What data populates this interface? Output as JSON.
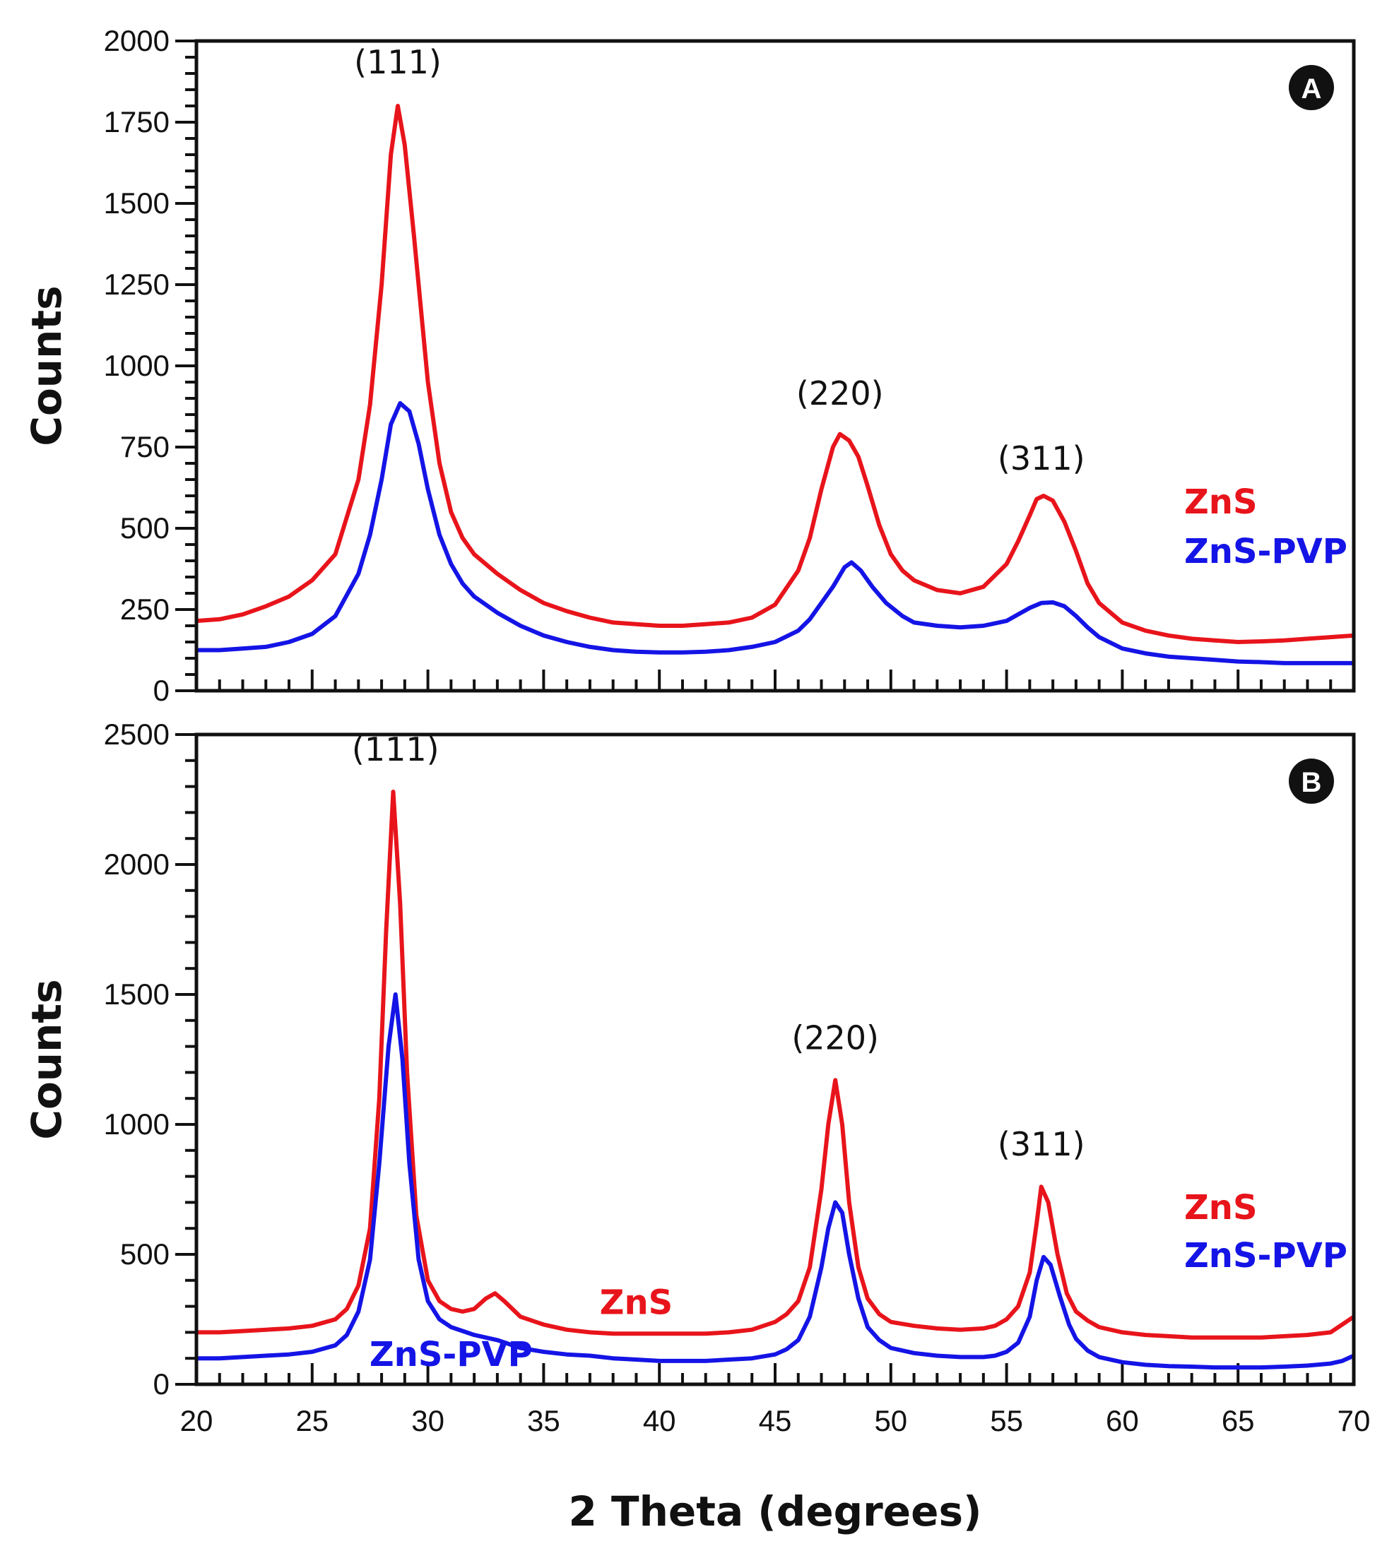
{
  "colors": {
    "zns": "#e8141b",
    "zns_pvp": "#1414e6",
    "axis": "#111111"
  },
  "chart_data": [
    {
      "type": "line",
      "panel_label": "A",
      "title": "",
      "xlabel": "2 Theta (degrees)",
      "ylabel": "Counts",
      "xlim": [
        20,
        70
      ],
      "ylim": [
        0,
        2000
      ],
      "y_ticks": [
        0,
        250,
        500,
        750,
        1000,
        1250,
        1500,
        1750,
        2000
      ],
      "x_ticks": [
        20,
        25,
        30,
        35,
        40,
        45,
        50,
        55,
        60,
        65,
        70
      ],
      "show_x_tick_labels": false,
      "grid": false,
      "legend": {
        "placement": "right",
        "entries": [
          "ZnS",
          "ZnS-PVP"
        ]
      },
      "annotations": [
        {
          "text": "(111)",
          "x": 28.7,
          "y": 1900
        },
        {
          "text": "(220)",
          "x": 47.8,
          "y": 880
        },
        {
          "text": "(311)",
          "x": 56.5,
          "y": 680
        }
      ],
      "series": [
        {
          "name": "ZnS",
          "x": [
            20,
            21,
            22,
            23,
            24,
            25,
            26,
            27,
            27.5,
            28,
            28.4,
            28.7,
            29,
            29.4,
            30,
            30.5,
            31,
            31.5,
            32,
            33,
            34,
            35,
            36,
            37,
            38,
            39,
            40,
            41,
            42,
            43,
            44,
            45,
            46,
            46.5,
            47,
            47.5,
            47.8,
            48.2,
            48.6,
            49,
            49.5,
            50,
            50.5,
            51,
            52,
            53,
            54,
            55,
            55.5,
            56,
            56.3,
            56.6,
            57,
            57.5,
            58,
            58.5,
            59,
            60,
            61,
            62,
            63,
            64,
            65,
            66,
            67,
            68,
            69,
            70
          ],
          "y": [
            215,
            220,
            235,
            260,
            290,
            340,
            420,
            650,
            880,
            1250,
            1650,
            1800,
            1680,
            1400,
            950,
            700,
            550,
            470,
            420,
            360,
            310,
            270,
            245,
            225,
            210,
            205,
            200,
            200,
            205,
            210,
            225,
            265,
            370,
            470,
            620,
            750,
            790,
            770,
            720,
            630,
            510,
            420,
            370,
            340,
            310,
            300,
            320,
            390,
            460,
            540,
            590,
            600,
            585,
            520,
            430,
            330,
            270,
            210,
            185,
            170,
            160,
            155,
            150,
            152,
            155,
            160,
            165,
            170
          ]
        },
        {
          "name": "ZnS-PVP",
          "x": [
            20,
            21,
            22,
            23,
            24,
            25,
            26,
            27,
            27.5,
            28,
            28.4,
            28.8,
            29.2,
            29.6,
            30,
            30.5,
            31,
            31.5,
            32,
            33,
            34,
            35,
            36,
            37,
            38,
            39,
            40,
            41,
            42,
            43,
            44,
            45,
            46,
            46.5,
            47,
            47.5,
            48,
            48.3,
            48.7,
            49.2,
            49.8,
            50.5,
            51,
            52,
            53,
            54,
            55,
            55.5,
            56,
            56.5,
            57,
            57.5,
            58,
            58.5,
            59,
            60,
            61,
            62,
            63,
            64,
            65,
            66,
            67,
            68,
            69,
            70
          ],
          "y": [
            125,
            125,
            130,
            135,
            150,
            175,
            230,
            360,
            480,
            650,
            820,
            885,
            860,
            760,
            620,
            480,
            390,
            330,
            290,
            240,
            200,
            170,
            150,
            135,
            125,
            120,
            118,
            118,
            120,
            125,
            135,
            150,
            185,
            220,
            270,
            320,
            380,
            395,
            370,
            320,
            270,
            230,
            210,
            200,
            195,
            200,
            215,
            235,
            255,
            270,
            272,
            260,
            230,
            195,
            165,
            130,
            115,
            105,
            100,
            95,
            90,
            88,
            85,
            85,
            85,
            85
          ]
        }
      ]
    },
    {
      "type": "line",
      "panel_label": "B",
      "title": "",
      "xlabel": "2 Theta (degrees)",
      "ylabel": "Counts",
      "xlim": [
        20,
        70
      ],
      "ylim": [
        0,
        2500
      ],
      "y_ticks": [
        0,
        500,
        1000,
        1500,
        2000,
        2500
      ],
      "x_ticks": [
        20,
        25,
        30,
        35,
        40,
        45,
        50,
        55,
        60,
        65,
        70
      ],
      "show_x_tick_labels": true,
      "grid": false,
      "legend": {
        "placement": "right",
        "entries": [
          "ZnS",
          "ZnS-PVP"
        ]
      },
      "annotations": [
        {
          "text": "(111)",
          "x": 28.6,
          "y": 2400
        },
        {
          "text": "(220)",
          "x": 47.6,
          "y": 1290
        },
        {
          "text": "(311)",
          "x": 56.5,
          "y": 880
        }
      ],
      "inline_labels": [
        {
          "text": "ZnS",
          "series": "ZnS",
          "x": 39,
          "y": 270
        },
        {
          "text": "ZnS-PVP",
          "series": "ZnS-PVP",
          "x": 31,
          "y": 70
        }
      ],
      "series": [
        {
          "name": "ZnS",
          "x": [
            20,
            21,
            22,
            23,
            24,
            25,
            26,
            26.5,
            27,
            27.5,
            27.9,
            28.2,
            28.5,
            28.8,
            29.1,
            29.5,
            30,
            30.5,
            31,
            31.5,
            32,
            32.5,
            32.9,
            33.3,
            34,
            35,
            36,
            37,
            38,
            39,
            40,
            41,
            42,
            43,
            44,
            45,
            45.5,
            46,
            46.5,
            47,
            47.3,
            47.6,
            47.9,
            48.2,
            48.6,
            49,
            49.5,
            50,
            51,
            52,
            53,
            54,
            54.5,
            55,
            55.5,
            56,
            56.3,
            56.5,
            56.8,
            57.2,
            57.6,
            58,
            58.5,
            59,
            60,
            61,
            62,
            63,
            64,
            65,
            66,
            67,
            68,
            69,
            69.5,
            70
          ],
          "y": [
            200,
            200,
            205,
            210,
            215,
            225,
            250,
            290,
            380,
            600,
            1100,
            1750,
            2280,
            1850,
            1200,
            650,
            400,
            320,
            290,
            280,
            290,
            330,
            350,
            320,
            260,
            230,
            210,
            200,
            195,
            195,
            195,
            195,
            195,
            200,
            210,
            240,
            270,
            320,
            450,
            750,
            1000,
            1170,
            1000,
            700,
            450,
            330,
            270,
            240,
            225,
            215,
            210,
            215,
            225,
            250,
            300,
            430,
            620,
            760,
            700,
            500,
            350,
            280,
            245,
            220,
            200,
            190,
            185,
            180,
            180,
            180,
            180,
            185,
            190,
            200,
            230,
            260
          ]
        },
        {
          "name": "ZnS-PVP",
          "x": [
            20,
            21,
            22,
            23,
            24,
            25,
            26,
            26.5,
            27,
            27.5,
            27.9,
            28.3,
            28.6,
            28.9,
            29.2,
            29.6,
            30,
            30.5,
            31,
            32,
            33,
            34,
            35,
            36,
            37,
            38,
            39,
            40,
            41,
            42,
            43,
            44,
            45,
            45.5,
            46,
            46.5,
            47,
            47.3,
            47.6,
            47.9,
            48.2,
            48.6,
            49,
            49.5,
            50,
            51,
            52,
            53,
            54,
            54.5,
            55,
            55.5,
            56,
            56.3,
            56.6,
            56.9,
            57.3,
            57.7,
            58,
            58.5,
            59,
            60,
            61,
            62,
            63,
            64,
            65,
            66,
            67,
            68,
            69,
            69.5,
            70
          ],
          "y": [
            100,
            100,
            105,
            110,
            115,
            125,
            150,
            190,
            280,
            480,
            850,
            1300,
            1500,
            1250,
            850,
            480,
            320,
            250,
            220,
            190,
            170,
            140,
            125,
            115,
            110,
            100,
            95,
            90,
            90,
            90,
            95,
            100,
            115,
            135,
            170,
            260,
            450,
            600,
            700,
            660,
            500,
            330,
            220,
            170,
            140,
            120,
            110,
            105,
            105,
            110,
            125,
            160,
            260,
            400,
            490,
            460,
            340,
            230,
            175,
            130,
            105,
            85,
            75,
            70,
            68,
            65,
            65,
            65,
            68,
            72,
            80,
            90,
            110
          ]
        }
      ]
    }
  ]
}
